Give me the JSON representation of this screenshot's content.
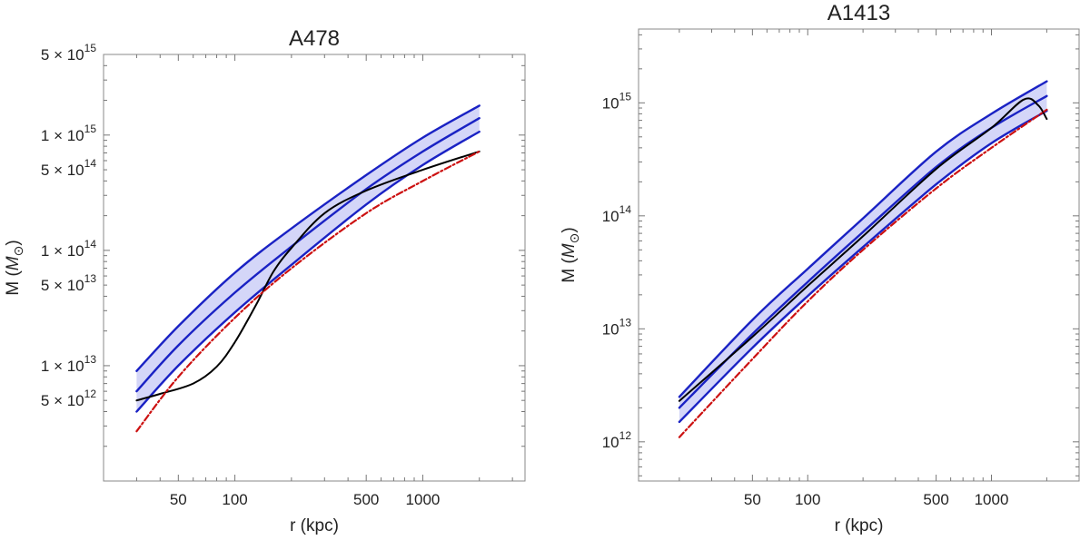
{
  "chart_data": [
    {
      "type": "line",
      "title": "A478",
      "xlabel": "r (kpc)",
      "ylabel_prefix": "M (",
      "ylabel_symbol": "M",
      "ylabel_subscript": "⊙",
      "ylabel_suffix": ")",
      "x_scale": "log",
      "y_scale": "log",
      "xlim": [
        20,
        3500
      ],
      "ylim": [
        1000000000000.0,
        5000000000000000.0
      ],
      "x_ticks": [
        {
          "value": 50,
          "label": "50"
        },
        {
          "value": 100,
          "label": "100"
        },
        {
          "value": 500,
          "label": "500"
        },
        {
          "value": 1000,
          "label": "1000"
        }
      ],
      "y_ticks": [
        {
          "value": 5000000000000.0,
          "mantissa": "5",
          "exponent": "12"
        },
        {
          "value": 10000000000000.0,
          "mantissa": "1",
          "exponent": "13"
        },
        {
          "value": 50000000000000.0,
          "mantissa": "5",
          "exponent": "13"
        },
        {
          "value": 100000000000000.0,
          "mantissa": "1",
          "exponent": "14"
        },
        {
          "value": 500000000000000.0,
          "mantissa": "5",
          "exponent": "14"
        },
        {
          "value": 1000000000000000.0,
          "mantissa": "1",
          "exponent": "15"
        },
        {
          "value": 5000000000000000.0,
          "mantissa": "5",
          "exponent": "15"
        }
      ],
      "grid": false,
      "band": {
        "color": "#d4d6f8",
        "x": [
          30,
          50,
          100,
          200,
          500,
          1000,
          2000
        ],
        "lower": [
          4000000000000.0,
          10000000000000.0,
          29000000000000.0,
          75000000000000.0,
          250000000000000.0,
          550000000000000.0,
          1070000000000000.0
        ],
        "upper": [
          9000000000000.0,
          22000000000000.0,
          64000000000000.0,
          155000000000000.0,
          450000000000000.0,
          950000000000000.0,
          1800000000000000.0
        ]
      },
      "series": [
        {
          "role": "band-upper",
          "color": "#1a22c4",
          "style": "solid",
          "x": [
            30,
            50,
            100,
            200,
            500,
            1000,
            2000
          ],
          "y": [
            9000000000000.0,
            22000000000000.0,
            64000000000000.0,
            155000000000000.0,
            450000000000000.0,
            950000000000000.0,
            1800000000000000.0
          ]
        },
        {
          "role": "band-center",
          "color": "#1a22c4",
          "style": "solid",
          "x": [
            30,
            50,
            100,
            200,
            500,
            1000,
            2000
          ],
          "y": [
            6000000000000.0,
            15000000000000.0,
            43000000000000.0,
            108000000000000.0,
            340000000000000.0,
            720000000000000.0,
            1400000000000000.0
          ]
        },
        {
          "role": "band-lower",
          "color": "#1a22c4",
          "style": "solid",
          "x": [
            30,
            50,
            100,
            200,
            500,
            1000,
            2000
          ],
          "y": [
            4000000000000.0,
            10000000000000.0,
            29000000000000.0,
            75000000000000.0,
            250000000000000.0,
            550000000000000.0,
            1070000000000000.0
          ]
        },
        {
          "role": "observed",
          "color": "#000000",
          "style": "solid",
          "x": [
            30,
            40,
            60,
            80,
            100,
            130,
            160,
            200,
            300,
            500,
            1000,
            2000
          ],
          "y": [
            5000000000000.0,
            5700000000000.0,
            7000000000000.0,
            9800000000000.0,
            16000000000000.0,
            34000000000000.0,
            65000000000000.0,
            105000000000000.0,
            210000000000000.0,
            330000000000000.0,
            500000000000000.0,
            720000000000000.0
          ]
        },
        {
          "role": "model",
          "color": "#cc1111",
          "style": "dashdot",
          "x": [
            30,
            50,
            100,
            200,
            500,
            1000,
            2000
          ],
          "y": [
            2700000000000.0,
            8000000000000.0,
            26000000000000.0,
            70000000000000.0,
            210000000000000.0,
            400000000000000.0,
            720000000000000.0
          ]
        }
      ]
    },
    {
      "type": "line",
      "title": "A1413",
      "xlabel": "r (kpc)",
      "ylabel_prefix": "M (",
      "ylabel_symbol": "M",
      "ylabel_subscript": "⊙",
      "ylabel_suffix": ")",
      "x_scale": "log",
      "y_scale": "log",
      "xlim": [
        12,
        3000
      ],
      "ylim": [
        450000000000.0,
        4500000000000000.0
      ],
      "x_ticks": [
        {
          "value": 50,
          "label": "50"
        },
        {
          "value": 100,
          "label": "100"
        },
        {
          "value": 500,
          "label": "500"
        },
        {
          "value": 1000,
          "label": "1000"
        }
      ],
      "y_ticks": [
        {
          "value": 1000000000000.0,
          "mantissa": "",
          "exponent": "12"
        },
        {
          "value": 10000000000000.0,
          "mantissa": "",
          "exponent": "13"
        },
        {
          "value": 100000000000000.0,
          "mantissa": "",
          "exponent": "14"
        },
        {
          "value": 1000000000000000.0,
          "mantissa": "",
          "exponent": "15"
        }
      ],
      "grid": false,
      "band": {
        "color": "#d4d6f8",
        "x": [
          20,
          50,
          100,
          200,
          500,
          1000,
          2000
        ],
        "lower": [
          1500000000000.0,
          6800000000000.0,
          19500000000000.0,
          53000000000000.0,
          190000000000000.0,
          440000000000000.0,
          850000000000000.0
        ],
        "upper": [
          2500000000000.0,
          12000000000000.0,
          34000000000000.0,
          95000000000000.0,
          370000000000000.0,
          800000000000000.0,
          1550000000000000.0
        ]
      },
      "series": [
        {
          "role": "band-upper",
          "color": "#1a22c4",
          "style": "solid",
          "x": [
            20,
            50,
            100,
            200,
            500,
            1000,
            2000
          ],
          "y": [
            2500000000000.0,
            12000000000000.0,
            34000000000000.0,
            95000000000000.0,
            370000000000000.0,
            800000000000000.0,
            1550000000000000.0
          ]
        },
        {
          "role": "band-center",
          "color": "#1a22c4",
          "style": "solid",
          "x": [
            20,
            50,
            100,
            200,
            500,
            1000,
            2000
          ],
          "y": [
            2000000000000.0,
            9000000000000.0,
            26000000000000.0,
            72000000000000.0,
            270000000000000.0,
            600000000000000.0,
            1150000000000000.0
          ]
        },
        {
          "role": "band-lower",
          "color": "#1a22c4",
          "style": "solid",
          "x": [
            20,
            50,
            100,
            200,
            500,
            1000,
            2000
          ],
          "y": [
            1500000000000.0,
            6800000000000.0,
            19500000000000.0,
            53000000000000.0,
            190000000000000.0,
            440000000000000.0,
            850000000000000.0
          ]
        },
        {
          "role": "observed",
          "color": "#000000",
          "style": "solid",
          "x": [
            20,
            50,
            100,
            200,
            500,
            1000,
            1500,
            1800,
            2000
          ],
          "y": [
            2300000000000.0,
            8500000000000.0,
            24000000000000.0,
            66000000000000.0,
            260000000000000.0,
            600000000000000.0,
            1070000000000000.0,
            950000000000000.0,
            720000000000000.0
          ]
        },
        {
          "role": "model",
          "color": "#cc1111",
          "style": "dashdot",
          "x": [
            20,
            50,
            100,
            200,
            500,
            1000,
            2000
          ],
          "y": [
            1100000000000.0,
            5400000000000.0,
            17500000000000.0,
            50000000000000.0,
            175000000000000.0,
            400000000000000.0,
            870000000000000.0
          ]
        }
      ]
    }
  ]
}
